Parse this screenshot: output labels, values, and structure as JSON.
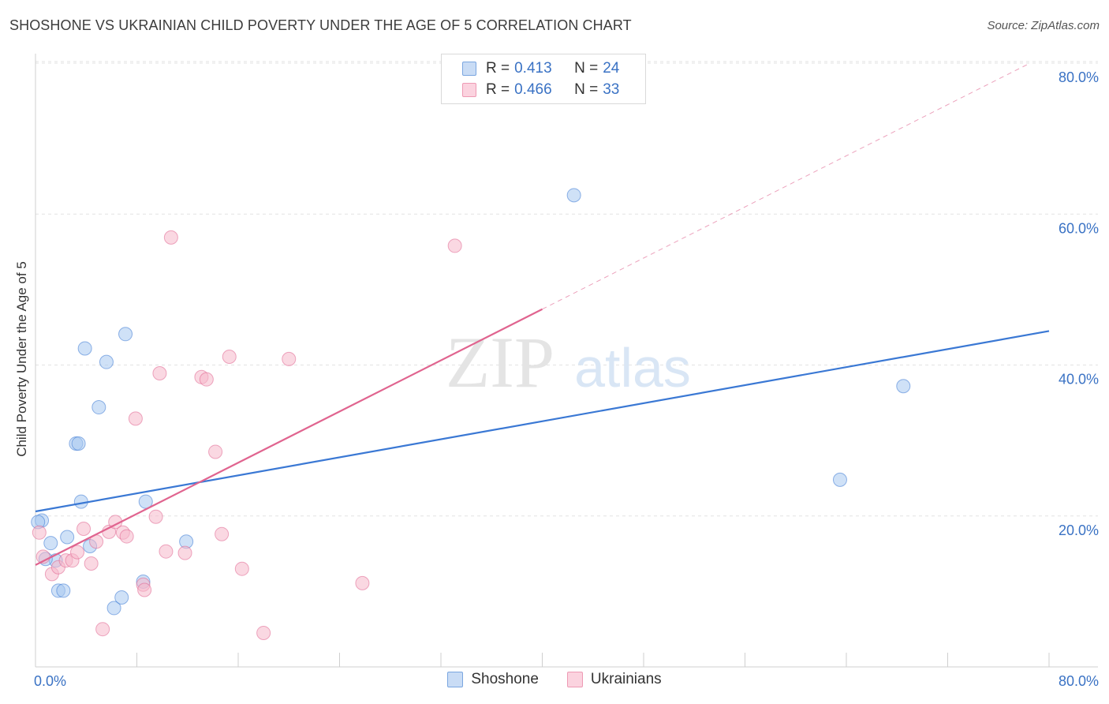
{
  "header": {
    "title": "SHOSHONE VS UKRAINIAN CHILD POVERTY UNDER THE AGE OF 5 CORRELATION CHART",
    "source": "Source: ZipAtlas.com"
  },
  "watermark": {
    "zip": "ZIP",
    "atlas": "atlas"
  },
  "legend_top": {
    "rows": [
      {
        "r_label": "R = ",
        "r_value": "0.413",
        "n_label": "N = ",
        "n_value": "24",
        "color": "#a8c8f0"
      },
      {
        "r_label": "R = ",
        "r_value": "0.466",
        "n_label": "N = ",
        "n_value": "33",
        "color": "#f5b8cb"
      }
    ]
  },
  "chart_data": {
    "type": "scatter",
    "title": "SHOSHONE VS UKRAINIAN CHILD POVERTY UNDER THE AGE OF 5 CORRELATION CHART",
    "xlabel": "",
    "ylabel": "Child Poverty Under the Age of 5",
    "xlim": [
      0,
      80
    ],
    "ylim": [
      0,
      80
    ],
    "x_tick_labels": [
      "0.0%",
      "80.0%"
    ],
    "y_tick_values": [
      20,
      40,
      60,
      80
    ],
    "y_tick_labels": [
      "20.0%",
      "40.0%",
      "60.0%",
      "80.0%"
    ],
    "grid": true,
    "legend_position": "bottom",
    "series": [
      {
        "name": "Shoshone",
        "color": "#3a78d4",
        "fill": "#a8c8f0",
        "r": 0.413,
        "n": 24,
        "trend": {
          "x": [
            0,
            80
          ],
          "y": [
            20.6,
            44.5
          ],
          "dashed_extension": false
        },
        "points": [
          [
            0.5,
            19.4
          ],
          [
            1.2,
            16.4
          ],
          [
            1.6,
            14.1
          ],
          [
            1.8,
            10.1
          ],
          [
            2.2,
            10.1
          ],
          [
            2.5,
            17.2
          ],
          [
            3.2,
            29.6
          ],
          [
            3.4,
            29.6
          ],
          [
            3.6,
            21.9
          ],
          [
            3.9,
            42.2
          ],
          [
            4.3,
            16.0
          ],
          [
            5.0,
            34.4
          ],
          [
            5.6,
            40.4
          ],
          [
            6.2,
            7.8
          ],
          [
            6.8,
            9.2
          ],
          [
            7.1,
            44.1
          ],
          [
            8.5,
            11.3
          ],
          [
            8.7,
            21.9
          ],
          [
            11.9,
            16.6
          ],
          [
            42.5,
            62.5
          ],
          [
            63.5,
            24.8
          ],
          [
            68.5,
            37.2
          ],
          [
            0.2,
            19.2
          ],
          [
            0.8,
            14.3
          ]
        ]
      },
      {
        "name": "Ukrainians",
        "color": "#e0648f",
        "fill": "#f5b8cb",
        "r": 0.466,
        "n": 33,
        "trend": {
          "x": [
            0,
            40
          ],
          "y": [
            13.5,
            47.4
          ],
          "dashed_extension": true,
          "dash_x": [
            40,
            78.5
          ],
          "dash_y": [
            47.4,
            80
          ]
        },
        "points": [
          [
            0.3,
            17.8
          ],
          [
            0.6,
            14.6
          ],
          [
            1.3,
            12.3
          ],
          [
            1.8,
            13.2
          ],
          [
            2.4,
            14.1
          ],
          [
            2.9,
            14.1
          ],
          [
            3.3,
            15.2
          ],
          [
            3.8,
            18.3
          ],
          [
            4.4,
            13.7
          ],
          [
            4.8,
            16.6
          ],
          [
            5.3,
            5.0
          ],
          [
            5.8,
            17.9
          ],
          [
            6.3,
            19.2
          ],
          [
            6.9,
            17.8
          ],
          [
            7.2,
            17.3
          ],
          [
            7.9,
            32.9
          ],
          [
            8.5,
            10.9
          ],
          [
            8.6,
            10.2
          ],
          [
            9.5,
            19.9
          ],
          [
            9.8,
            38.9
          ],
          [
            10.3,
            15.3
          ],
          [
            10.7,
            56.9
          ],
          [
            11.8,
            15.1
          ],
          [
            13.1,
            38.4
          ],
          [
            13.5,
            38.1
          ],
          [
            14.2,
            28.5
          ],
          [
            14.7,
            17.6
          ],
          [
            15.3,
            41.1
          ],
          [
            16.3,
            13.0
          ],
          [
            18.0,
            4.5
          ],
          [
            20.0,
            40.8
          ],
          [
            25.8,
            11.1
          ],
          [
            33.1,
            55.8
          ]
        ]
      }
    ]
  }
}
